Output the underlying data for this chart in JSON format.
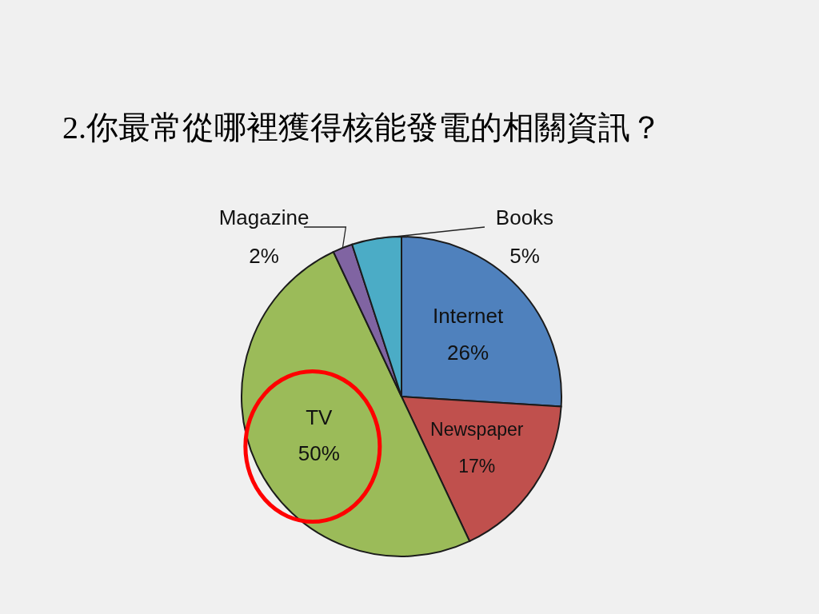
{
  "chart_data": {
    "type": "pie",
    "title": "2.你最常從哪裡獲得核能發電的相關資訊？",
    "categories": [
      "Internet",
      "Newspaper",
      "TV",
      "Magazine",
      "Books"
    ],
    "values": [
      26,
      17,
      50,
      2,
      5
    ],
    "colors": [
      "#4f81bd",
      "#c0504d",
      "#9bbb59",
      "#8064a2",
      "#4bacc6"
    ],
    "value_labels": [
      "26%",
      "17%",
      "50%",
      "2%",
      "5%"
    ]
  }
}
